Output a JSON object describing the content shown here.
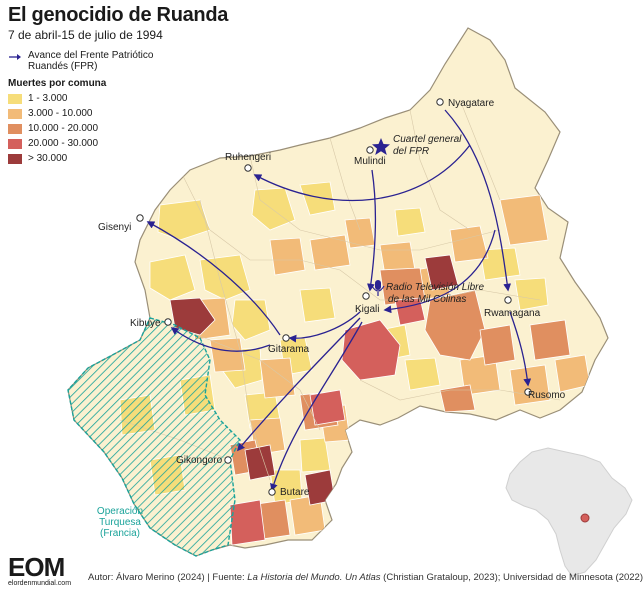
{
  "title": "El genocidio de Ruanda",
  "subtitle": "7 de abril-15 de julio de 1994",
  "legend": {
    "arrow_label": "Avance del Frente Patriótico Ruandés (FPR)",
    "deaths_title": "Muertes por comuna",
    "classes": [
      {
        "label": "1 - 3.000",
        "color": "#f6dd7a"
      },
      {
        "label": "3.000 - 10.000",
        "color": "#f2bb78"
      },
      {
        "label": "10.000 - 20.000",
        "color": "#e08f60"
      },
      {
        "label": "20.000 - 30.000",
        "color": "#d4605c"
      },
      {
        "label": "> 30.000",
        "color": "#9c3b3b"
      }
    ]
  },
  "colors": {
    "base": "#fbf1d0",
    "arrow": "#2a2291",
    "turquoise": "#1aa39a"
  },
  "places": {
    "nyagatare": "Nyagatare",
    "cuartel": "Cuartel general",
    "cuartel2": "del FPR",
    "mulindi": "Mulindi",
    "ruhengeri": "Ruhengeri",
    "gisenyi": "Gisenyi",
    "radio1": "Radio Televisión Libre",
    "radio2": "de las Mil Colinas",
    "kigali": "Kigali",
    "rwamagana": "Rwamagana",
    "kibuye": "Kibuye",
    "gitarama": "Gitarama",
    "rusomo": "Rusomo",
    "gikongoro": "Gikongoro",
    "butare": "Butare"
  },
  "operation": {
    "line1": "Operación",
    "line2": "Turquesa",
    "line3": "(Francia)"
  },
  "footer": {
    "logo": "EOM",
    "logo_sub": "elordenmundial.com",
    "author": "Autor: Álvaro Merino (2024) | Fuente: ",
    "source_italic": "La Historia del Mundo. Un Atlas",
    "source_rest": " (Christian Grataloup, 2023); Universidad de Minnesota (2022)"
  }
}
